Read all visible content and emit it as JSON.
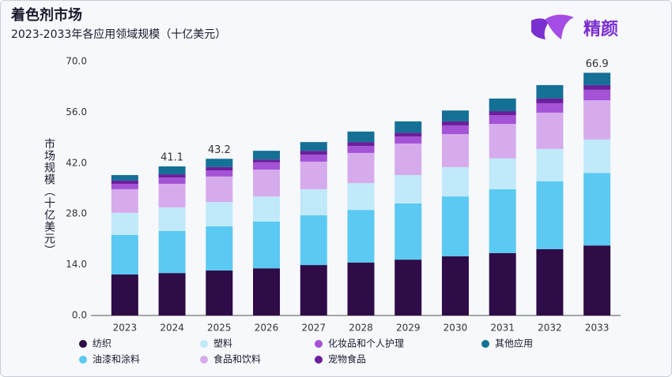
{
  "chart_data": {
    "type": "stacked_bar",
    "title": "着色剂市场",
    "subtitle": "2023-2033年各应用领域规模（十亿美元）",
    "brand": "精颜",
    "y_label": "市场规模（十亿美元）",
    "categories": [
      "2023",
      "2024",
      "2025",
      "2026",
      "2027",
      "2028",
      "2029",
      "2030",
      "2031",
      "2032",
      "2033"
    ],
    "series": [
      {
        "name": "纺织",
        "color": "#2e0c47",
        "values": [
          11.3,
          11.7,
          12.4,
          13.0,
          13.9,
          14.6,
          15.4,
          16.3,
          17.2,
          18.3,
          19.3
        ]
      },
      {
        "name": "油漆和涂料",
        "color": "#5bc9f2",
        "values": [
          10.9,
          11.6,
          12.2,
          12.9,
          13.7,
          14.5,
          15.5,
          16.5,
          17.6,
          18.7,
          20.0
        ]
      },
      {
        "name": "塑料",
        "color": "#c0e9f9",
        "values": [
          6.1,
          6.5,
          6.7,
          6.9,
          7.2,
          7.4,
          7.8,
          8.1,
          8.5,
          8.9,
          9.2
        ]
      },
      {
        "name": "食品和饮料",
        "color": "#d6abec",
        "values": [
          6.5,
          6.5,
          7.0,
          7.4,
          7.6,
          8.3,
          8.7,
          9.1,
          9.5,
          10.0,
          10.8
        ]
      },
      {
        "name": "化妆品和个人护理",
        "color": "#a453d6",
        "values": [
          1.5,
          1.7,
          1.7,
          2.0,
          1.9,
          1.9,
          1.9,
          2.4,
          2.4,
          2.6,
          2.9
        ]
      },
      {
        "name": "宠物食品",
        "color": "#6b1f9c",
        "values": [
          0.9,
          0.9,
          0.9,
          0.8,
          1.1,
          1.1,
          1.1,
          1.1,
          1.1,
          1.3,
          1.3
        ]
      },
      {
        "name": "其他应用",
        "color": "#157096",
        "values": [
          1.5,
          2.2,
          2.3,
          2.4,
          2.4,
          2.9,
          3.1,
          3.0,
          3.5,
          3.7,
          3.4
        ]
      }
    ],
    "total_labels": [
      null,
      41.1,
      43.2,
      null,
      null,
      null,
      null,
      null,
      null,
      null,
      66.9
    ],
    "ylim": [
      0,
      70
    ],
    "yticks": [
      {
        "value": 0,
        "label": "0.0"
      },
      {
        "value": 14,
        "label": "14.0"
      },
      {
        "value": 28,
        "label": "28.0"
      },
      {
        "value": 42,
        "label": "42.0"
      },
      {
        "value": 56,
        "label": "56.0"
      },
      {
        "value": 70,
        "label": "70.0"
      }
    ],
    "grid": false
  }
}
